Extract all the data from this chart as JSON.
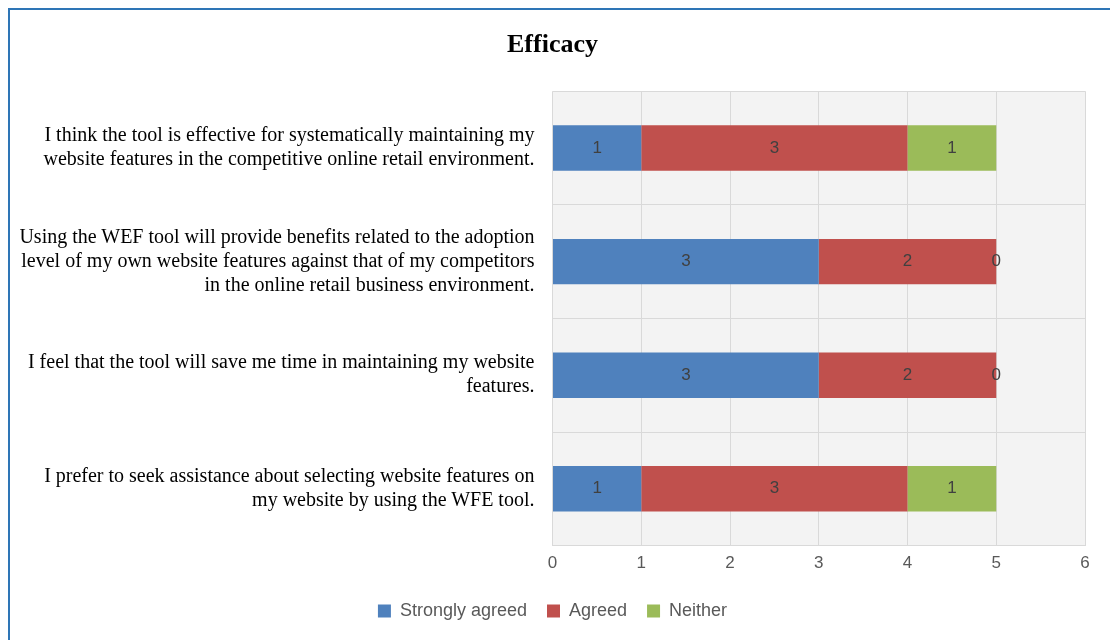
{
  "chart_data": {
    "type": "bar",
    "orientation": "horizontal",
    "stacked": true,
    "title": "Efficacy",
    "categories": [
      "I think the tool is effective for systematically maintaining my website features in the competitive online retail environment.",
      "Using the WEF tool will provide benefits related to the adoption level of my own website features against that of my competitors in the online retail business environment.",
      "I feel that the tool will save me time in maintaining my website features.",
      "I prefer to seek assistance about selecting website features on my website by using the WFE tool."
    ],
    "series": [
      {
        "name": "Strongly agreed",
        "color": "#4f81bd",
        "values": [
          1,
          3,
          3,
          1
        ]
      },
      {
        "name": "Agreed",
        "color": "#c0504d",
        "values": [
          3,
          2,
          2,
          3
        ]
      },
      {
        "name": "Neither",
        "color": "#9bbb59",
        "values": [
          1,
          0,
          0,
          1
        ]
      }
    ],
    "xlim": [
      0,
      6
    ],
    "xticks": [
      0,
      1,
      2,
      3,
      4,
      5,
      6
    ],
    "grid": true,
    "legend": "bottom",
    "data_labels": true
  }
}
